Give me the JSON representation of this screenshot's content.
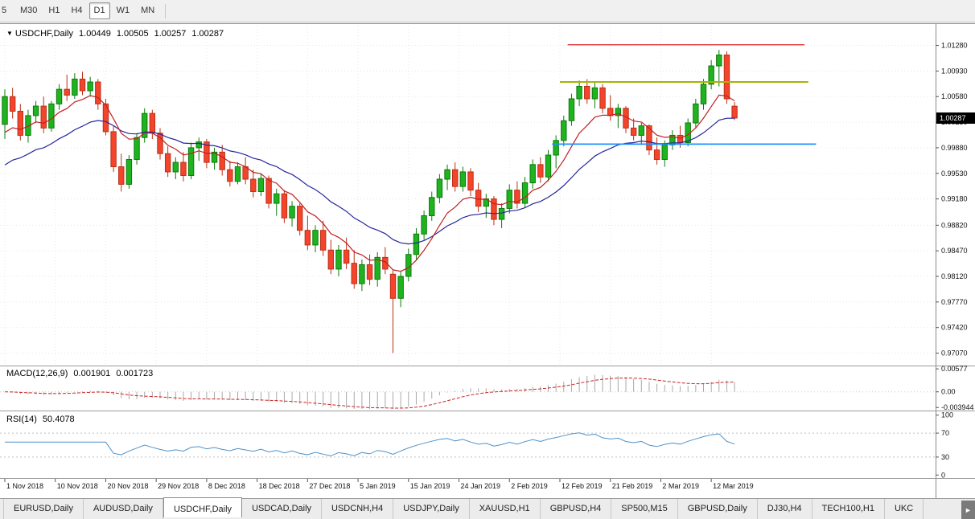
{
  "toolbar": {
    "timeframes": [
      {
        "label": "5"
      },
      {
        "label": "M30"
      },
      {
        "label": "H1"
      },
      {
        "label": "H4"
      },
      {
        "label": "D1",
        "selected": true
      },
      {
        "label": "W1"
      },
      {
        "label": "MN"
      }
    ]
  },
  "chart": {
    "collapse_marker": "▼",
    "symbol_title": "USDCHF,Daily",
    "ohlc": {
      "open": "1.00449",
      "high": "1.00505",
      "low": "1.00257",
      "close": "1.00287"
    },
    "current_price": "1.00287"
  },
  "indicators": {
    "macd": {
      "name": "MACD(12,26,9)",
      "value_main": "0.001901",
      "value_signal": "0.001723",
      "axis_labels": [
        "0.00577",
        "0.00",
        "-0.003944"
      ]
    },
    "rsi": {
      "name": "RSI(14)",
      "value": "50.4078",
      "axis_labels": [
        "100",
        "70",
        "30",
        "0"
      ]
    }
  },
  "tabs": {
    "scroll_right_icon": "►",
    "items": [
      {
        "label": "EURUSD,Daily"
      },
      {
        "label": "AUDUSD,Daily"
      },
      {
        "label": "USDCHF,Daily",
        "active": true
      },
      {
        "label": "USDCAD,Daily"
      },
      {
        "label": "USDCNH,H4"
      },
      {
        "label": "USDJPY,Daily"
      },
      {
        "label": "XAUUSD,H1"
      },
      {
        "label": "GBPUSD,H4"
      },
      {
        "label": "SP500,M15"
      },
      {
        "label": "GBPUSD,Daily"
      },
      {
        "label": "DJ30,H4"
      },
      {
        "label": "TECH100,H1"
      },
      {
        "label": "UKC"
      }
    ]
  },
  "chart_data": {
    "type": "candlestick",
    "symbol": "USDCHF",
    "timeframe": "Daily",
    "title": "USDCHF,Daily",
    "y_range": [
      0.969,
      1.0155
    ],
    "price_axis_labels": [
      "1.01280",
      "1.00930",
      "1.00580",
      "1.00230",
      "0.99880",
      "0.99530",
      "0.99180",
      "0.98820",
      "0.98470",
      "0.98120",
      "0.97770",
      "0.97420",
      "0.97070"
    ],
    "date_axis_labels": [
      "1 Nov 2018",
      "10 Nov 2018",
      "20 Nov 2018",
      "29 Nov 2018",
      "8 Dec 2018",
      "18 Dec 2018",
      "27 Dec 2018",
      "5 Jan 2019",
      "15 Jan 2019",
      "24 Jan 2019",
      "2 Feb 2019",
      "12 Feb 2019",
      "21 Feb 2019",
      "2 Mar 2019",
      "12 Mar 2019"
    ],
    "date_tick_indices": [
      0,
      6.5,
      13,
      19.5,
      26,
      32.5,
      39,
      45.5,
      52,
      58.5,
      65,
      71.5,
      78,
      84.5,
      91
    ],
    "candles": [
      [
        1.002,
        1.0068,
        1.0,
        1.0058
      ],
      [
        1.0058,
        1.007,
        1.0028,
        1.0038
      ],
      [
        1.0038,
        1.0048,
        0.9998,
        1.0005
      ],
      [
        1.0005,
        1.004,
        0.9995,
        1.0032
      ],
      [
        1.0032,
        1.0052,
        1.0022,
        1.0045
      ],
      [
        1.0045,
        1.0058,
        1.0008,
        1.0015
      ],
      [
        1.0015,
        1.0052,
        1.001,
        1.0048
      ],
      [
        1.0048,
        1.0075,
        1.004,
        1.0068
      ],
      [
        1.0068,
        1.0088,
        1.0052,
        1.006
      ],
      [
        1.006,
        1.009,
        1.0055,
        1.0082
      ],
      [
        1.0082,
        1.0092,
        1.006,
        1.0066
      ],
      [
        1.0066,
        1.0085,
        1.0058,
        1.0078
      ],
      [
        1.0078,
        1.0082,
        1.004,
        1.0048
      ],
      [
        1.0048,
        1.0055,
        1.0005,
        1.001
      ],
      [
        1.001,
        1.0018,
        0.9955,
        0.9962
      ],
      [
        0.9962,
        0.998,
        0.9928,
        0.9938
      ],
      [
        0.9938,
        0.9978,
        0.9932,
        0.9972
      ],
      [
        0.9972,
        1.0008,
        0.9965,
        1.0002
      ],
      [
        1.0002,
        1.0042,
        0.9995,
        1.0035
      ],
      [
        1.0035,
        1.004,
        1.0,
        1.0008
      ],
      [
        1.0008,
        1.0015,
        0.9972,
        0.998
      ],
      [
        0.998,
        0.999,
        0.9948,
        0.9955
      ],
      [
        0.9955,
        0.9975,
        0.9945,
        0.9968
      ],
      [
        0.9968,
        0.9982,
        0.9942,
        0.995
      ],
      [
        0.995,
        0.9995,
        0.9945,
        0.9988
      ],
      [
        0.9988,
        1.0002,
        0.997,
        0.9996
      ],
      [
        0.9996,
        1.0,
        0.996,
        0.9968
      ],
      [
        0.9968,
        0.9988,
        0.9958,
        0.9982
      ],
      [
        0.9982,
        0.9992,
        0.995,
        0.9958
      ],
      [
        0.9958,
        0.997,
        0.9935,
        0.9942
      ],
      [
        0.9942,
        0.9968,
        0.9938,
        0.9962
      ],
      [
        0.9962,
        0.9975,
        0.9938,
        0.9945
      ],
      [
        0.9945,
        0.9958,
        0.992,
        0.9928
      ],
      [
        0.9928,
        0.9952,
        0.9922,
        0.9946
      ],
      [
        0.9946,
        0.995,
        0.9905,
        0.9912
      ],
      [
        0.9912,
        0.9932,
        0.9895,
        0.9925
      ],
      [
        0.9925,
        0.993,
        0.9885,
        0.9892
      ],
      [
        0.9892,
        0.9915,
        0.988,
        0.9908
      ],
      [
        0.9908,
        0.9912,
        0.9868,
        0.9875
      ],
      [
        0.9875,
        0.9895,
        0.9848,
        0.9855
      ],
      [
        0.9855,
        0.9882,
        0.9845,
        0.9875
      ],
      [
        0.9875,
        0.9888,
        0.984,
        0.9848
      ],
      [
        0.9848,
        0.9862,
        0.9815,
        0.9822
      ],
      [
        0.9822,
        0.9855,
        0.9812,
        0.9848
      ],
      [
        0.9848,
        0.9865,
        0.9822,
        0.983
      ],
      [
        0.983,
        0.9848,
        0.9795,
        0.9802
      ],
      [
        0.9802,
        0.9835,
        0.9792,
        0.9828
      ],
      [
        0.9828,
        0.9842,
        0.98,
        0.9808
      ],
      [
        0.9808,
        0.9845,
        0.9798,
        0.9838
      ],
      [
        0.9838,
        0.9852,
        0.9815,
        0.9822
      ],
      [
        0.9815,
        0.982,
        0.9707,
        0.9782
      ],
      [
        0.9782,
        0.9818,
        0.977,
        0.9812
      ],
      [
        0.9812,
        0.985,
        0.9805,
        0.9842
      ],
      [
        0.9842,
        0.9878,
        0.9835,
        0.987
      ],
      [
        0.987,
        0.9902,
        0.9862,
        0.9895
      ],
      [
        0.9895,
        0.9928,
        0.9888,
        0.992
      ],
      [
        0.992,
        0.9952,
        0.9912,
        0.9945
      ],
      [
        0.9945,
        0.9965,
        0.993,
        0.9958
      ],
      [
        0.9958,
        0.9968,
        0.9928,
        0.9935
      ],
      [
        0.9935,
        0.9962,
        0.9928,
        0.9955
      ],
      [
        0.9955,
        0.996,
        0.9922,
        0.993
      ],
      [
        0.993,
        0.994,
        0.99,
        0.9908
      ],
      [
        0.9908,
        0.9925,
        0.9892,
        0.9918
      ],
      [
        0.9918,
        0.9922,
        0.9882,
        0.989
      ],
      [
        0.989,
        0.9912,
        0.9878,
        0.9905
      ],
      [
        0.9905,
        0.9938,
        0.9898,
        0.993
      ],
      [
        0.993,
        0.9942,
        0.9905,
        0.9912
      ],
      [
        0.9912,
        0.9948,
        0.9906,
        0.994
      ],
      [
        0.994,
        0.9972,
        0.9932,
        0.9965
      ],
      [
        0.9965,
        0.9975,
        0.994,
        0.9948
      ],
      [
        0.9948,
        0.9985,
        0.9942,
        0.9978
      ],
      [
        0.9978,
        1.0005,
        0.996,
        0.9998
      ],
      [
        0.9998,
        1.0032,
        0.999,
        1.0025
      ],
      [
        1.0025,
        1.0062,
        1.0018,
        1.0055
      ],
      [
        1.0055,
        1.008,
        1.0045,
        1.0072
      ],
      [
        1.0072,
        1.0082,
        1.0048,
        1.0055
      ],
      [
        1.0055,
        1.0078,
        1.0042,
        1.007
      ],
      [
        1.007,
        1.0075,
        1.0035,
        1.0042
      ],
      [
        1.0042,
        1.006,
        1.0025,
        1.0032
      ],
      [
        1.0032,
        1.0048,
        1.0015,
        1.0042
      ],
      [
        1.0042,
        1.0045,
        1.0008,
        1.0015
      ],
      [
        1.0015,
        1.0028,
        0.9998,
        1.0005
      ],
      [
        1.0005,
        1.0022,
        0.9992,
        1.0018
      ],
      [
        1.0018,
        1.002,
        0.9978,
        0.9985
      ],
      [
        0.9985,
        1.0002,
        0.9965,
        0.9972
      ],
      [
        0.9972,
        0.9998,
        0.9962,
        0.9992
      ],
      [
        0.9992,
        1.0012,
        0.9985,
        1.0005
      ],
      [
        1.0005,
        1.0018,
        0.9988,
        0.9995
      ],
      [
        0.9995,
        1.0028,
        0.999,
        1.0022
      ],
      [
        1.0022,
        1.0055,
        1.0015,
        1.0048
      ],
      [
        1.0048,
        1.0082,
        1.004,
        1.0075
      ],
      [
        1.0075,
        1.0108,
        1.0068,
        1.01
      ],
      [
        1.01,
        1.0122,
        1.0072,
        1.0115
      ],
      [
        1.0115,
        1.012,
        1.0048,
        1.0055
      ],
      [
        1.00449,
        1.00505,
        1.00257,
        1.00287
      ]
    ],
    "colors": {
      "up": "#1fb41f",
      "up_stroke": "#0c7a0c",
      "down": "#f4452c",
      "down_stroke": "#b93017",
      "ma_fast": "#c02020",
      "ma_slow": "#26269a",
      "macd_hist": "#a9a9a9",
      "macd_signal": "#cc2222",
      "rsi": "#4f92c8",
      "grid": "#e7e7e7",
      "hline_red": "#e03737",
      "hline_yellow": "#a8b400",
      "hline_blue": "#1e90ff"
    },
    "moving_averages": [
      {
        "type": "ema",
        "period": 8,
        "seed": 0.9995,
        "color_key": "ma_fast"
      },
      {
        "type": "ema",
        "period": 21,
        "seed": 0.9955,
        "color_key": "ma_slow"
      }
    ],
    "hlines": [
      {
        "price": 1.0129,
        "from_index": 72.5,
        "to_index": 103,
        "color_key": "hline_red",
        "width": 1.4
      },
      {
        "price": 1.0078,
        "from_index": 71.5,
        "to_index": 103.5,
        "color_key": "hline_yellow",
        "width": 2
      },
      {
        "price": 0.9993,
        "from_index": 70.5,
        "to_index": 104.5,
        "color_key": "hline_blue",
        "width": 1.8
      }
    ],
    "macd": {
      "fast": 12,
      "slow": 26,
      "signal": 9,
      "range": [
        -0.0045,
        0.0062
      ],
      "levels": [
        0
      ]
    },
    "rsi": {
      "period": 14,
      "range": [
        -5,
        105
      ],
      "levels": [
        70,
        30
      ]
    }
  }
}
